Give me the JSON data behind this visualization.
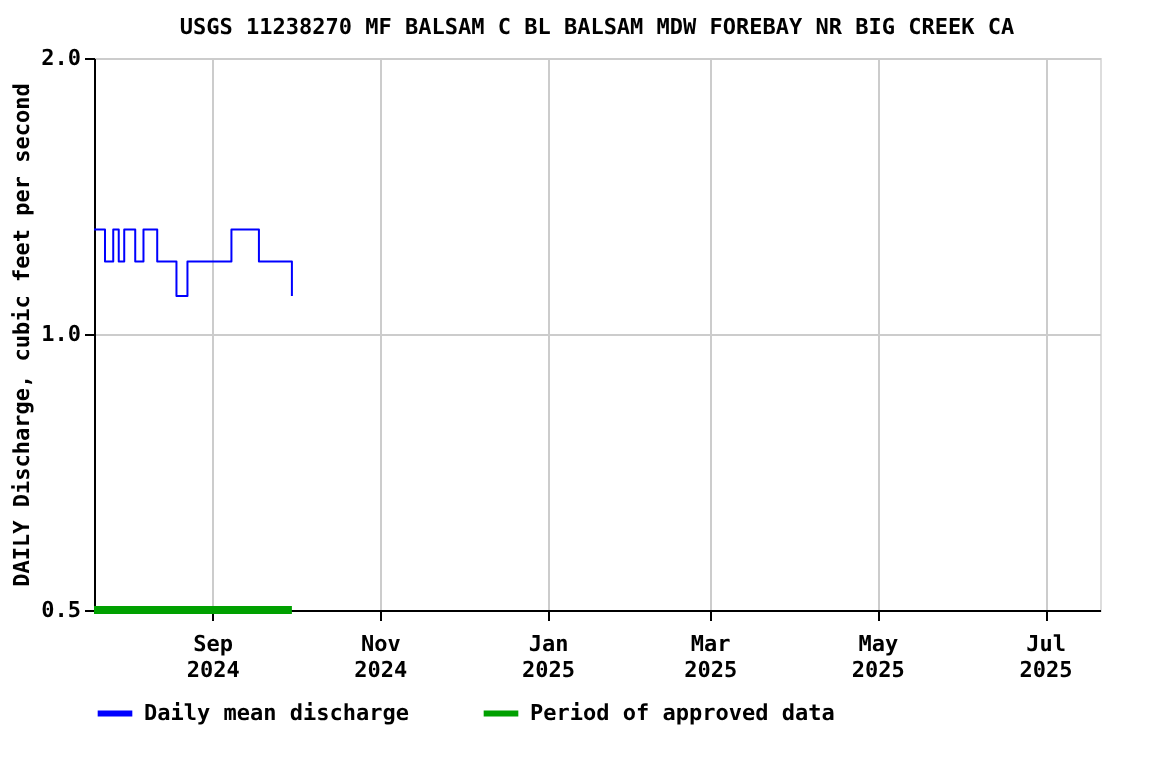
{
  "chart_data": {
    "type": "step",
    "title": "USGS 11238270 MF BALSAM C BL BALSAM MDW FOREBAY NR BIG CREEK CA",
    "ylabel": "DAILY Discharge, cubic feet per second",
    "series": [
      {
        "name": "Daily mean discharge",
        "color": "#0000ff",
        "x": [
          "2024-07-20",
          "2024-07-24",
          "2024-07-27",
          "2024-07-29",
          "2024-07-31",
          "2024-08-04",
          "2024-08-07",
          "2024-08-12",
          "2024-08-19",
          "2024-08-23",
          "2024-09-08",
          "2024-09-18",
          "2024-09-29",
          "2024-09-30"
        ],
        "values": [
          1.3,
          1.2,
          1.3,
          1.2,
          1.3,
          1.2,
          1.3,
          1.2,
          1.1,
          1.2,
          1.3,
          1.2,
          1.2,
          1.1
        ]
      },
      {
        "name": "Period of approved data",
        "type": "line",
        "color": "#00a000",
        "x": [
          "2024-07-20",
          "2024-09-30"
        ],
        "values": [
          0.5,
          0.5
        ]
      }
    ],
    "xlim": [
      "2024-07-20",
      "2025-07-21"
    ],
    "xticks": [
      {
        "value": "2024-09-01",
        "label": "Sep 2024"
      },
      {
        "value": "2024-11-01",
        "label": "Nov 2024"
      },
      {
        "value": "2025-01-01",
        "label": "Jan 2025"
      },
      {
        "value": "2025-03-01",
        "label": "Mar 2025"
      },
      {
        "value": "2025-05-01",
        "label": "May 2025"
      },
      {
        "value": "2025-07-01",
        "label": "Jul 2025"
      }
    ],
    "ylim": [
      0.5,
      2.0
    ],
    "yticks": [
      0.5,
      {
        "value": 1,
        "label": "1.0"
      },
      {
        "value": 2,
        "label": "2.0"
      }
    ],
    "log": "y",
    "grid": true,
    "legend": "bottom",
    "line_style": "solid",
    "marker": "none"
  }
}
